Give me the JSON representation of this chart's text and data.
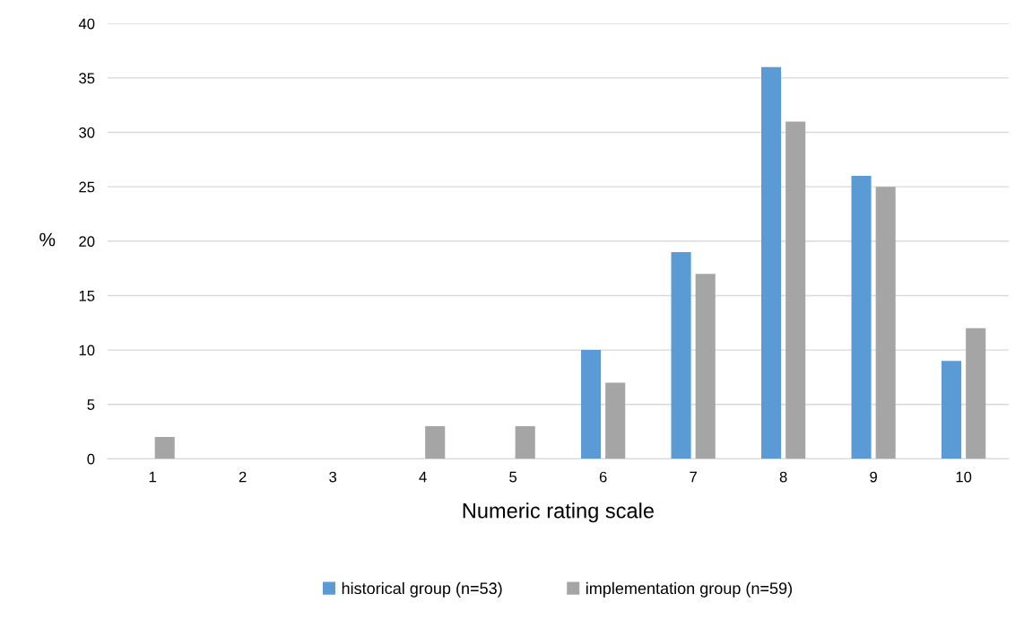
{
  "chart_data": {
    "type": "bar",
    "xlabel": "Numeric rating scale",
    "ylabel": "%",
    "categories": [
      "1",
      "2",
      "3",
      "4",
      "5",
      "6",
      "7",
      "8",
      "9",
      "10"
    ],
    "series": [
      {
        "name": "historical group (n=53)",
        "color": "#5b9bd5",
        "values": [
          0,
          0,
          0,
          0,
          0,
          10,
          19,
          36,
          26,
          9
        ]
      },
      {
        "name": "implementation group (n=59)",
        "color": "#a5a5a5",
        "values": [
          2,
          0,
          0,
          3,
          3,
          7,
          17,
          31,
          25,
          12
        ]
      }
    ],
    "ylim": [
      0,
      40
    ],
    "yticks": [
      0,
      5,
      10,
      15,
      20,
      25,
      30,
      35,
      40
    ],
    "grid": "y",
    "legend": "bottom"
  }
}
